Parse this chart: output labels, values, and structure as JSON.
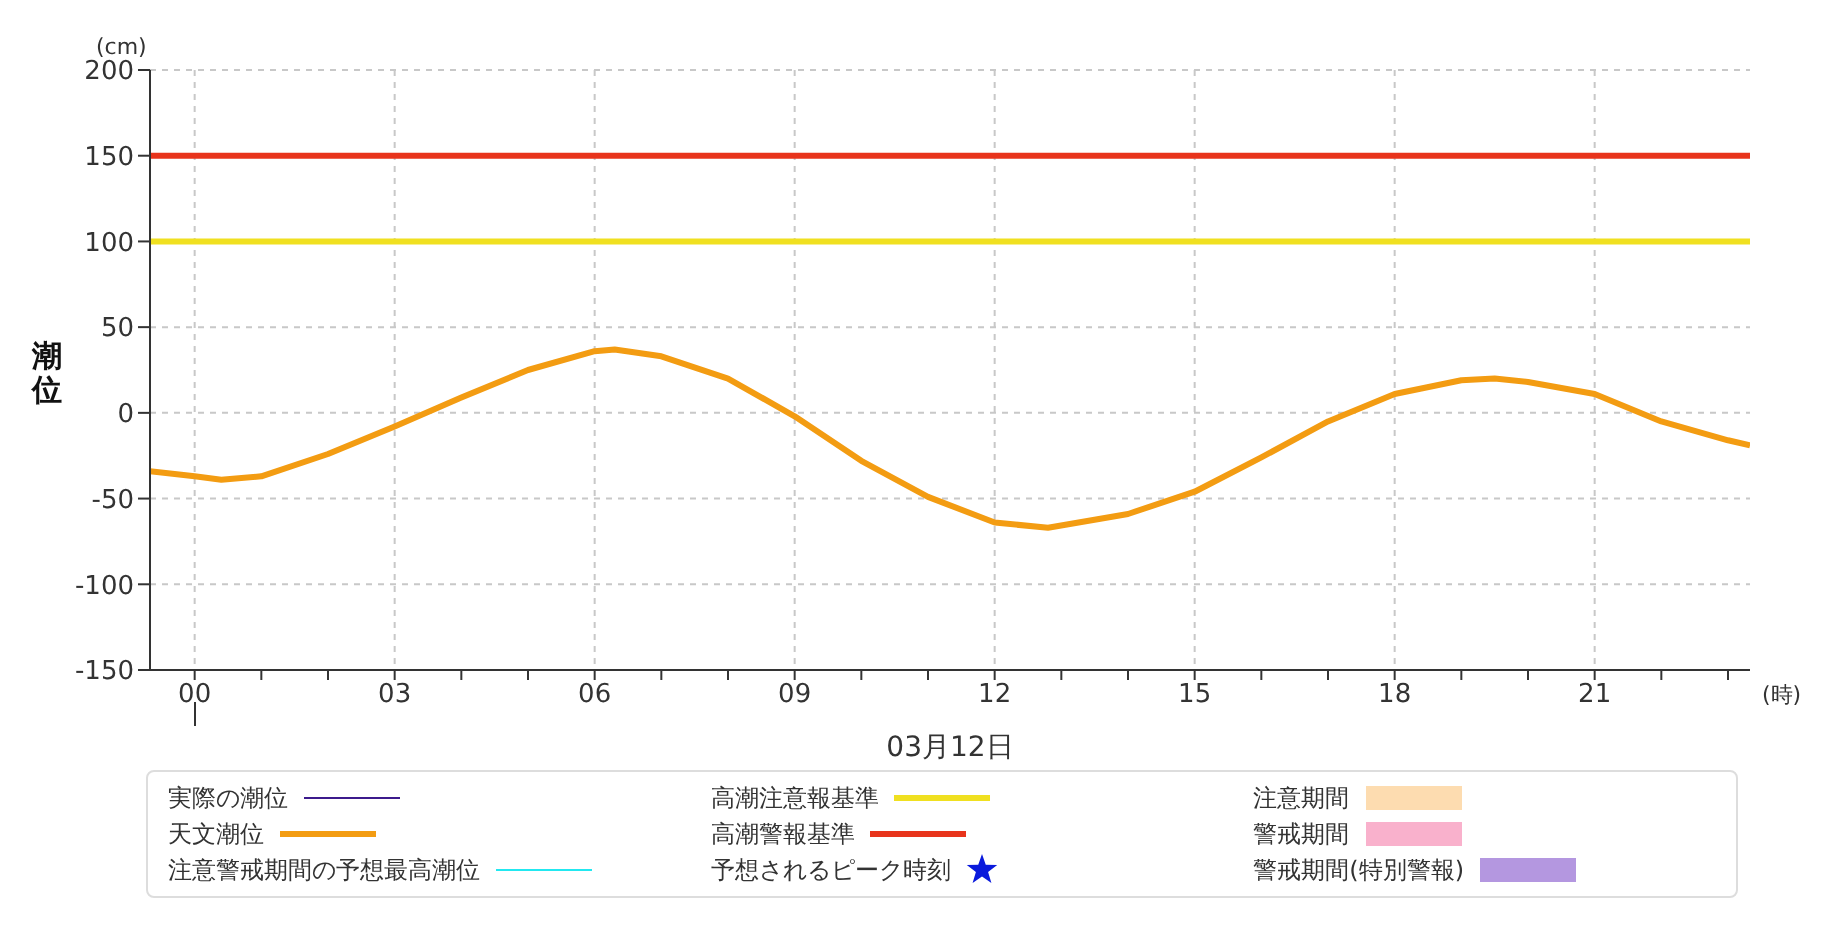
{
  "chart_data": {
    "type": "line",
    "xlabel": "03月12日",
    "ylabel": "潮位",
    "annotations": [
      "(cm)",
      "(時)"
    ],
    "xlim": [
      -0.67,
      23.33
    ],
    "xticks": [
      {
        "value": 0,
        "label": "00"
      },
      {
        "value": 1,
        "label": null
      },
      {
        "value": 2,
        "label": null
      },
      {
        "value": 3,
        "label": "03"
      },
      {
        "value": 4,
        "label": null
      },
      {
        "value": 5,
        "label": null
      },
      {
        "value": 6,
        "label": "06"
      },
      {
        "value": 7,
        "label": null
      },
      {
        "value": 8,
        "label": null
      },
      {
        "value": 9,
        "label": "09"
      },
      {
        "value": 10,
        "label": null
      },
      {
        "value": 11,
        "label": null
      },
      {
        "value": 12,
        "label": "12"
      },
      {
        "value": 13,
        "label": null
      },
      {
        "value": 14,
        "label": null
      },
      {
        "value": 15,
        "label": "15"
      },
      {
        "value": 16,
        "label": null
      },
      {
        "value": 17,
        "label": null
      },
      {
        "value": 18,
        "label": "18"
      },
      {
        "value": 19,
        "label": null
      },
      {
        "value": 20,
        "label": null
      },
      {
        "value": 21,
        "label": "21"
      },
      {
        "value": 22,
        "label": null
      },
      {
        "value": 23,
        "label": null
      }
    ],
    "ylim": [
      -150,
      200
    ],
    "yticks": [
      -150,
      -100,
      -50,
      0,
      50,
      100,
      150,
      200
    ],
    "grid": true,
    "legend": "bottom",
    "marker": "none",
    "line_style": "solid",
    "series": [
      {
        "name": "実際の潮位",
        "color": "#3c1a8c"
      },
      {
        "name": "天文潮位",
        "color": "#f39c12",
        "x": [
          -0.67,
          0,
          0.4,
          1,
          2,
          3,
          4,
          5,
          6,
          6.3,
          7,
          8,
          9,
          10,
          11,
          12,
          12.8,
          14,
          15,
          16,
          17,
          18,
          19,
          19.5,
          20,
          21,
          22,
          23,
          23.33
        ],
        "values": [
          -34,
          -37,
          -39,
          -37,
          -24,
          -8,
          9,
          25,
          36,
          37,
          33,
          20,
          -2,
          -28,
          -49,
          -64,
          -67,
          -59,
          -46,
          -26,
          -5,
          11,
          19,
          20,
          18,
          11,
          -5,
          -16,
          -19
        ]
      },
      {
        "name": "注意警戒期間の予想最高潮位",
        "color": "#22e8f0"
      },
      {
        "name": "高潮注意報基準",
        "color": "#f0e020",
        "x": [
          -0.67,
          23.33
        ],
        "values": [
          100,
          100
        ]
      },
      {
        "name": "高潮警報基準",
        "color": "#e8341c",
        "x": [
          -0.67,
          23.33
        ],
        "values": [
          150,
          150
        ]
      },
      {
        "name": "予想されるピーク時刻",
        "type": "scatter",
        "marker": "star",
        "color": "#0a1adc"
      },
      {
        "name": "注意期間",
        "type": "area",
        "color": "#fddcb0"
      },
      {
        "name": "警戒期間",
        "type": "area",
        "color": "#f9b1cc"
      },
      {
        "name": "警戒期間(特別警報)",
        "type": "area",
        "color": "#b497e0"
      }
    ]
  }
}
